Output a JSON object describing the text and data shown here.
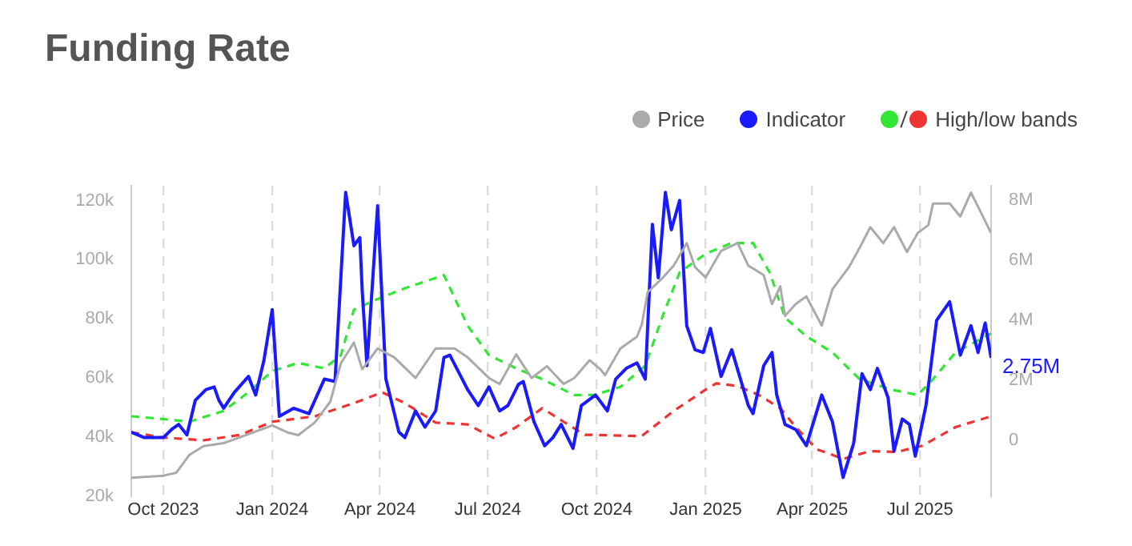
{
  "chart_data": {
    "type": "line",
    "title": "Funding Rate",
    "xlim": [
      "2023-09-04",
      "2025-08-30"
    ],
    "xticks": [
      {
        "value": "2023-10-01",
        "label": "Oct 2023"
      },
      {
        "value": "2024-01-01",
        "label": "Jan 2024"
      },
      {
        "value": "2024-04-01",
        "label": "Apr 2024"
      },
      {
        "value": "2024-07-01",
        "label": "Jul 2024"
      },
      {
        "value": "2024-10-01",
        "label": "Oct 2024"
      },
      {
        "value": "2025-01-01",
        "label": "Jan 2025"
      },
      {
        "value": "2025-04-01",
        "label": "Apr 2025"
      },
      {
        "value": "2025-07-01",
        "label": "Jul 2025"
      }
    ],
    "ylim": [
      20000,
      125000
    ],
    "yticks": [
      {
        "value": 20000,
        "label": "20k"
      },
      {
        "value": 40000,
        "label": "40k"
      },
      {
        "value": 60000,
        "label": "60k"
      },
      {
        "value": 80000,
        "label": "80k"
      },
      {
        "value": 100000,
        "label": "100k"
      },
      {
        "value": 120000,
        "label": "120k"
      }
    ],
    "y2lim": [
      -1870000,
      8490000
    ],
    "y2ticks": [
      0,
      {
        "value": 2000000,
        "label": "2M"
      },
      {
        "value": 4000000,
        "label": "4M"
      },
      {
        "value": 6000000,
        "label": "6M"
      },
      {
        "value": 8000000,
        "label": "8M"
      }
    ],
    "grid": "x",
    "legend": "top right",
    "marker": "none",
    "series": [
      {
        "name": "Price",
        "color": "#aaaaaa",
        "line_style": "solid",
        "x": [
          "2023-09-04",
          "2023-10-01",
          "2023-10-12",
          "2023-10-23",
          "2023-11-04",
          "2023-11-21",
          "2023-12-05",
          "2024-01-01",
          "2024-01-14",
          "2024-01-23",
          "2024-02-06",
          "2024-02-19",
          "2024-02-28",
          "2024-03-10",
          "2024-03-17",
          "2024-03-30",
          "2024-04-13",
          "2024-05-01",
          "2024-05-18",
          "2024-06-03",
          "2024-06-14",
          "2024-07-02",
          "2024-07-11",
          "2024-07-25",
          "2024-08-07",
          "2024-08-20",
          "2024-09-03",
          "2024-09-12",
          "2024-09-25",
          "2024-10-04",
          "2024-10-08",
          "2024-10-21",
          "2024-11-04",
          "2024-11-08",
          "2024-11-13",
          "2024-11-26",
          "2024-12-05",
          "2024-12-16",
          "2024-12-23",
          "2025-01-01",
          "2025-01-14",
          "2025-01-28",
          "2025-02-06",
          "2025-02-19",
          "2025-02-26",
          "2025-03-05",
          "2025-03-09",
          "2025-03-18",
          "2025-03-27",
          "2025-04-09",
          "2025-04-18",
          "2025-05-02",
          "2025-05-11",
          "2025-05-20",
          "2025-05-31",
          "2025-06-09",
          "2025-06-20",
          "2025-06-29",
          "2025-07-08",
          "2025-07-12",
          "2025-07-26",
          "2025-08-04",
          "2025-08-13",
          "2025-08-22",
          "2025-08-30"
        ],
        "values": [
          26300,
          27000,
          28000,
          34000,
          37000,
          38000,
          40000,
          44000,
          41600,
          40700,
          45000,
          52000,
          65000,
          72000,
          63000,
          70000,
          67000,
          60000,
          70000,
          70000,
          67000,
          60000,
          58000,
          68000,
          60000,
          64000,
          58000,
          60000,
          66000,
          63000,
          61000,
          70000,
          74000,
          78000,
          89000,
          94000,
          98000,
          105600,
          97500,
          94000,
          103000,
          105600,
          98000,
          94800,
          85000,
          91000,
          81000,
          85000,
          87600,
          77700,
          90000,
          97500,
          104000,
          111000,
          105600,
          111000,
          102600,
          109000,
          111700,
          119000,
          119000,
          114600,
          122700,
          115500,
          109000
        ]
      },
      {
        "name": "Indicator",
        "color": "#1a1aff",
        "axis": "y2",
        "line_style": "solid",
        "x": [
          "2023-09-04",
          "2023-09-15",
          "2023-10-01",
          "2023-10-08",
          "2023-10-14",
          "2023-10-21",
          "2023-10-28",
          "2023-11-06",
          "2023-11-13",
          "2023-11-17",
          "2023-11-21",
          "2023-11-30",
          "2023-12-12",
          "2023-12-18",
          "2023-12-25",
          "2024-01-01",
          "2024-01-07",
          "2024-01-19",
          "2024-02-01",
          "2024-02-14",
          "2024-02-23",
          "2024-03-03",
          "2024-03-10",
          "2024-03-15",
          "2024-03-17",
          "2024-03-21",
          "2024-03-30",
          "2024-04-06",
          "2024-04-17",
          "2024-04-22",
          "2024-05-01",
          "2024-05-09",
          "2024-05-18",
          "2024-05-25",
          "2024-05-30",
          "2024-06-14",
          "2024-06-23",
          "2024-07-02",
          "2024-07-11",
          "2024-07-18",
          "2024-07-27",
          "2024-07-31",
          "2024-08-09",
          "2024-08-18",
          "2024-08-25",
          "2024-09-01",
          "2024-09-11",
          "2024-09-18",
          "2024-09-30",
          "2024-10-10",
          "2024-10-17",
          "2024-10-26",
          "2024-11-04",
          "2024-11-11",
          "2024-11-17",
          "2024-11-22",
          "2024-11-28",
          "2024-12-03",
          "2024-12-10",
          "2024-12-16",
          "2024-12-23",
          "2024-12-30",
          "2025-01-05",
          "2025-01-14",
          "2025-01-23",
          "2025-02-06",
          "2025-02-10",
          "2025-02-19",
          "2025-02-26",
          "2025-03-02",
          "2025-03-09",
          "2025-03-18",
          "2025-03-27",
          "2025-04-09",
          "2025-04-18",
          "2025-04-27",
          "2025-05-06",
          "2025-05-13",
          "2025-05-20",
          "2025-05-26",
          "2025-06-04",
          "2025-06-09",
          "2025-06-16",
          "2025-06-22",
          "2025-06-27",
          "2025-07-06",
          "2025-07-15",
          "2025-07-26",
          "2025-08-04",
          "2025-08-13",
          "2025-08-19",
          "2025-08-25",
          "2025-08-30"
        ],
        "values": [
          270000,
          90000,
          90000,
          360000,
          530000,
          180000,
          1330000,
          1690000,
          1780000,
          1330000,
          1070000,
          1600000,
          2130000,
          1510000,
          2670000,
          4360000,
          800000,
          1070000,
          890000,
          2040000,
          1960000,
          8270000,
          6490000,
          6760000,
          4980000,
          2490000,
          7820000,
          2040000,
          270000,
          90000,
          980000,
          440000,
          980000,
          2760000,
          2840000,
          1690000,
          1160000,
          1780000,
          980000,
          1160000,
          1870000,
          1960000,
          620000,
          -180000,
          90000,
          530000,
          -270000,
          1160000,
          1510000,
          980000,
          2040000,
          2400000,
          2580000,
          2040000,
          7200000,
          5420000,
          8270000,
          7020000,
          8000000,
          3820000,
          3020000,
          2930000,
          3730000,
          2130000,
          3020000,
          1160000,
          890000,
          2490000,
          2930000,
          1510000,
          530000,
          360000,
          -180000,
          1510000,
          620000,
          -1240000,
          -90000,
          2220000,
          1690000,
          2400000,
          1420000,
          -360000,
          710000,
          530000,
          -530000,
          1160000,
          4000000,
          4620000,
          2840000,
          3820000,
          2930000,
          3910000,
          2750000
        ],
        "value_labels": [
          null,
          null,
          null,
          null,
          null,
          null,
          null,
          null,
          null,
          null,
          null,
          null,
          null,
          null,
          null,
          null,
          null,
          null,
          null,
          null,
          null,
          null,
          null,
          null,
          null,
          null,
          null,
          null,
          null,
          null,
          null,
          null,
          null,
          null,
          null,
          null,
          null,
          null,
          null,
          null,
          null,
          null,
          null,
          null,
          null,
          null,
          null,
          null,
          null,
          null,
          null,
          null,
          null,
          null,
          null,
          null,
          null,
          null,
          null,
          null,
          null,
          null,
          null,
          null,
          null,
          null,
          null,
          null,
          null,
          null,
          null,
          null,
          null,
          null,
          null,
          null,
          null,
          null,
          null,
          null,
          null,
          null,
          null,
          null,
          null,
          null,
          null,
          null,
          null,
          null,
          null,
          null,
          "2.75M"
        ]
      },
      {
        "color": "#33e633",
        "axis": "y2",
        "line_style": "dashed",
        "x": [
          "2023-09-04",
          "2023-10-01",
          "2023-10-23",
          "2023-11-21",
          "2023-12-12",
          "2024-01-01",
          "2024-01-23",
          "2024-02-14",
          "2024-02-28",
          "2024-03-10",
          "2024-03-30",
          "2024-04-22",
          "2024-05-25",
          "2024-06-14",
          "2024-07-02",
          "2024-07-25",
          "2024-08-16",
          "2024-09-12",
          "2024-09-29",
          "2024-10-21",
          "2024-11-11",
          "2024-11-26",
          "2024-12-10",
          "2025-01-01",
          "2025-01-23",
          "2025-02-10",
          "2025-02-24",
          "2025-03-09",
          "2025-03-27",
          "2025-04-18",
          "2025-05-11",
          "2025-06-07",
          "2025-06-29",
          "2025-07-12",
          "2025-07-31",
          "2025-08-17",
          "2025-08-30"
        ],
        "values": [
          800000,
          710000,
          620000,
          980000,
          1600000,
          2310000,
          2580000,
          2400000,
          2840000,
          4360000,
          4710000,
          5070000,
          5510000,
          3820000,
          2840000,
          2400000,
          2040000,
          1510000,
          1510000,
          1780000,
          2490000,
          4180000,
          5600000,
          6220000,
          6580000,
          6580000,
          5600000,
          4090000,
          3470000,
          2930000,
          2040000,
          1690000,
          1510000,
          2040000,
          2930000,
          3290000,
          3560000
        ]
      },
      {
        "name": "High/low bands",
        "color": "#ee3333",
        "axis": "y2",
        "line_style": "dashed",
        "x": [
          "2023-09-04",
          "2023-10-01",
          "2023-11-04",
          "2023-12-05",
          "2024-01-01",
          "2024-02-06",
          "2024-03-10",
          "2024-04-03",
          "2024-04-22",
          "2024-05-18",
          "2024-06-14",
          "2024-07-07",
          "2024-07-25",
          "2024-08-16",
          "2024-09-03",
          "2024-09-21",
          "2024-09-29",
          "2024-11-08",
          "2024-12-05",
          "2025-01-01",
          "2025-01-10",
          "2025-01-28",
          "2025-02-15",
          "2025-03-05",
          "2025-03-18",
          "2025-04-05",
          "2025-04-27",
          "2025-05-20",
          "2025-06-11",
          "2025-07-03",
          "2025-07-31",
          "2025-08-30"
        ],
        "values": [
          270000,
          90000,
          0,
          180000,
          620000,
          800000,
          1240000,
          1600000,
          1240000,
          590000,
          530000,
          50000,
          440000,
          1070000,
          620000,
          180000,
          180000,
          140000,
          980000,
          1690000,
          1900000,
          1810000,
          1510000,
          1070000,
          440000,
          -300000,
          -620000,
          -360000,
          -390000,
          -180000,
          440000,
          800000
        ]
      }
    ]
  }
}
